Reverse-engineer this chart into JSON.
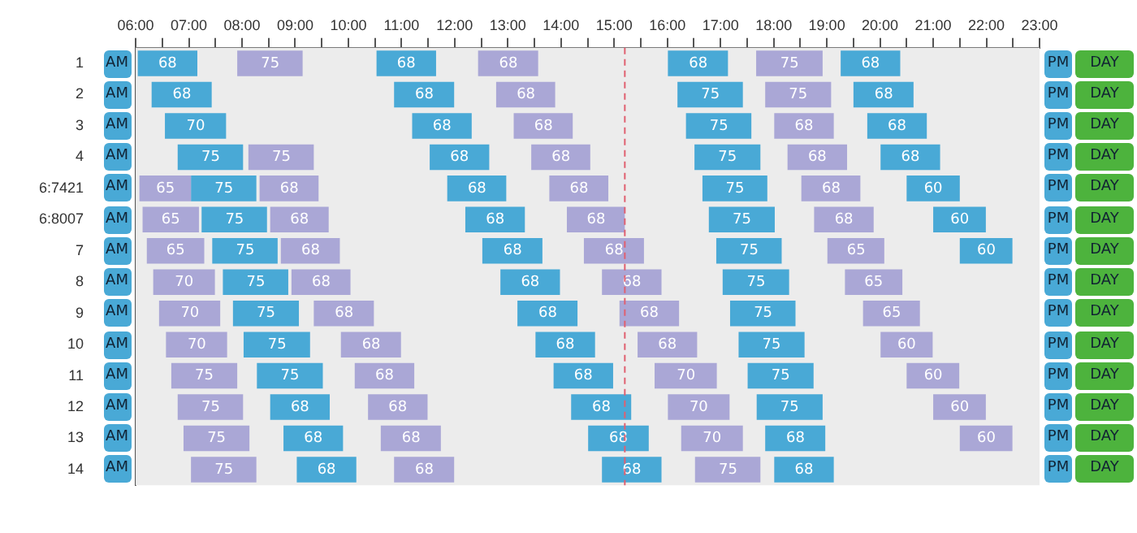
{
  "chart_data": {
    "type": "bar",
    "orientation": "horizontal",
    "categories": [
      "1",
      "2",
      "3",
      "4",
      "6:7421",
      "6:8007",
      "7",
      "8",
      "9",
      "10",
      "11",
      "12",
      "13",
      "14"
    ],
    "xlim": [
      6,
      23
    ],
    "xticks": [
      {
        "value": 6,
        "label": "06:00"
      },
      {
        "value": 6.5,
        "label": null
      },
      {
        "value": 7,
        "label": "07:00"
      },
      {
        "value": 7.5,
        "label": null
      },
      {
        "value": 8,
        "label": "08:00"
      },
      {
        "value": 8.5,
        "label": null
      },
      {
        "value": 9,
        "label": "09:00"
      },
      {
        "value": 9.5,
        "label": null
      },
      {
        "value": 10,
        "label": "10:00"
      },
      {
        "value": 10.5,
        "label": null
      },
      {
        "value": 11,
        "label": "11:00"
      },
      {
        "value": 11.5,
        "label": null
      },
      {
        "value": 12,
        "label": "12:00"
      },
      {
        "value": 12.5,
        "label": null
      },
      {
        "value": 13,
        "label": "13:00"
      },
      {
        "value": 13.5,
        "label": null
      },
      {
        "value": 14,
        "label": "14:00"
      },
      {
        "value": 14.5,
        "label": null
      },
      {
        "value": 15,
        "label": "15:00"
      },
      {
        "value": 15.5,
        "label": null
      },
      {
        "value": 16,
        "label": "16:00"
      },
      {
        "value": 16.5,
        "label": null
      },
      {
        "value": 17,
        "label": "17:00"
      },
      {
        "value": 17.5,
        "label": null
      },
      {
        "value": 18,
        "label": "18:00"
      },
      {
        "value": 18.5,
        "label": null
      },
      {
        "value": 19,
        "label": "19:00"
      },
      {
        "value": 19.5,
        "label": null
      },
      {
        "value": 20,
        "label": "20:00"
      },
      {
        "value": 20.5,
        "label": null
      },
      {
        "value": 21,
        "label": "21:00"
      },
      {
        "value": 21.5,
        "label": null
      },
      {
        "value": 22,
        "label": "22:00"
      },
      {
        "value": 22.5,
        "label": null
      },
      {
        "value": 23,
        "label": "23:00"
      }
    ],
    "ref_lines": [
      {
        "axis": "x",
        "value": 15.2,
        "color": "#e06070",
        "line_style": "dashed"
      }
    ],
    "annotations": [
      "AM",
      "PM",
      "DAY",
      {
        "text": "68",
        "x": 6.6,
        "y": "1"
      },
      {
        "text": "75",
        "x": 8.53,
        "y": "1"
      },
      {
        "text": "68",
        "x": 11.09,
        "y": "1"
      },
      {
        "text": "68",
        "x": 13.01,
        "y": "1"
      },
      {
        "text": "68",
        "x": 16.58,
        "y": "1"
      },
      {
        "text": "75",
        "x": 18.3,
        "y": "1"
      },
      {
        "text": "68",
        "x": 19.82,
        "y": "1"
      },
      {
        "text": "68",
        "x": 6.87,
        "y": "2"
      },
      {
        "text": "68",
        "x": 11.43,
        "y": "2"
      },
      {
        "text": "68",
        "x": 13.34,
        "y": "2"
      },
      {
        "text": "75",
        "x": 16.81,
        "y": "2"
      },
      {
        "text": "75",
        "x": 18.46,
        "y": "2"
      },
      {
        "text": "68",
        "x": 20.07,
        "y": "2"
      },
      {
        "text": "70",
        "x": 7.13,
        "y": "3"
      },
      {
        "text": "68",
        "x": 11.76,
        "y": "3"
      },
      {
        "text": "68",
        "x": 13.67,
        "y": "3"
      },
      {
        "text": "75",
        "x": 16.97,
        "y": "3"
      },
      {
        "text": "68",
        "x": 18.57,
        "y": "3"
      },
      {
        "text": "68",
        "x": 20.32,
        "y": "3"
      },
      {
        "text": "75",
        "x": 7.41,
        "y": "4"
      },
      {
        "text": "75",
        "x": 8.74,
        "y": "4"
      },
      {
        "text": "68",
        "x": 12.09,
        "y": "4"
      },
      {
        "text": "68",
        "x": 14.0,
        "y": "4"
      },
      {
        "text": "75",
        "x": 17.13,
        "y": "4"
      },
      {
        "text": "68",
        "x": 18.82,
        "y": "4"
      },
      {
        "text": "68",
        "x": 20.57,
        "y": "4"
      },
      {
        "text": "65",
        "x": 6.56,
        "y": "6:7421"
      },
      {
        "text": "75",
        "x": 7.66,
        "y": "6:7421"
      },
      {
        "text": "68",
        "x": 8.89,
        "y": "6:7421"
      },
      {
        "text": "68",
        "x": 12.42,
        "y": "6:7421"
      },
      {
        "text": "68",
        "x": 14.34,
        "y": "6:7421"
      },
      {
        "text": "75",
        "x": 17.27,
        "y": "6:7421"
      },
      {
        "text": "68",
        "x": 19.08,
        "y": "6:7421"
      },
      {
        "text": "60",
        "x": 21.0,
        "y": "6:7421"
      },
      {
        "text": "65",
        "x": 6.66,
        "y": "6:8007"
      },
      {
        "text": "75",
        "x": 7.86,
        "y": "6:8007"
      },
      {
        "text": "68",
        "x": 9.08,
        "y": "6:8007"
      },
      {
        "text": "68",
        "x": 12.76,
        "y": "6:8007"
      },
      {
        "text": "68",
        "x": 14.66,
        "y": "6:8007"
      },
      {
        "text": "75",
        "x": 17.4,
        "y": "6:8007"
      },
      {
        "text": "68",
        "x": 19.32,
        "y": "6:8007"
      },
      {
        "text": "60",
        "x": 21.5,
        "y": "6:8007"
      },
      {
        "text": "65",
        "x": 6.75,
        "y": "7"
      },
      {
        "text": "75",
        "x": 8.06,
        "y": "7"
      },
      {
        "text": "68",
        "x": 9.29,
        "y": "7"
      },
      {
        "text": "68",
        "x": 13.09,
        "y": "7"
      },
      {
        "text": "68",
        "x": 15.0,
        "y": "7"
      },
      {
        "text": "75",
        "x": 17.54,
        "y": "7"
      },
      {
        "text": "65",
        "x": 19.55,
        "y": "7"
      },
      {
        "text": "60",
        "x": 22.0,
        "y": "7"
      },
      {
        "text": "70",
        "x": 6.91,
        "y": "8"
      },
      {
        "text": "75",
        "x": 8.26,
        "y": "8"
      },
      {
        "text": "68",
        "x": 9.49,
        "y": "8"
      },
      {
        "text": "68",
        "x": 13.42,
        "y": "8"
      },
      {
        "text": "68",
        "x": 15.33,
        "y": "8"
      },
      {
        "text": "75",
        "x": 17.67,
        "y": "8"
      },
      {
        "text": "65",
        "x": 19.88,
        "y": "8"
      },
      {
        "text": "70",
        "x": 7.02,
        "y": "9"
      },
      {
        "text": "75",
        "x": 8.45,
        "y": "9"
      },
      {
        "text": "68",
        "x": 9.92,
        "y": "9"
      },
      {
        "text": "68",
        "x": 13.75,
        "y": "9"
      },
      {
        "text": "68",
        "x": 15.66,
        "y": "9"
      },
      {
        "text": "75",
        "x": 17.8,
        "y": "9"
      },
      {
        "text": "65",
        "x": 20.22,
        "y": "9"
      },
      {
        "text": "70",
        "x": 7.15,
        "y": "10"
      },
      {
        "text": "75",
        "x": 8.66,
        "y": "10"
      },
      {
        "text": "68",
        "x": 10.43,
        "y": "10"
      },
      {
        "text": "68",
        "x": 14.08,
        "y": "10"
      },
      {
        "text": "68",
        "x": 16.0,
        "y": "10"
      },
      {
        "text": "75",
        "x": 17.96,
        "y": "10"
      },
      {
        "text": "60",
        "x": 20.5,
        "y": "10"
      },
      {
        "text": "75",
        "x": 7.29,
        "y": "11"
      },
      {
        "text": "75",
        "x": 8.9,
        "y": "11"
      },
      {
        "text": "68",
        "x": 10.68,
        "y": "11"
      },
      {
        "text": "68",
        "x": 14.42,
        "y": "11"
      },
      {
        "text": "70",
        "x": 16.35,
        "y": "11"
      },
      {
        "text": "75",
        "x": 18.13,
        "y": "11"
      },
      {
        "text": "60",
        "x": 21.0,
        "y": "11"
      },
      {
        "text": "75",
        "x": 7.41,
        "y": "12"
      },
      {
        "text": "68",
        "x": 9.09,
        "y": "12"
      },
      {
        "text": "68",
        "x": 10.93,
        "y": "12"
      },
      {
        "text": "68",
        "x": 14.76,
        "y": "12"
      },
      {
        "text": "70",
        "x": 16.59,
        "y": "12"
      },
      {
        "text": "75",
        "x": 18.3,
        "y": "12"
      },
      {
        "text": "60",
        "x": 21.5,
        "y": "12"
      },
      {
        "text": "75",
        "x": 7.52,
        "y": "13"
      },
      {
        "text": "68",
        "x": 9.34,
        "y": "13"
      },
      {
        "text": "68",
        "x": 11.18,
        "y": "13"
      },
      {
        "text": "68",
        "x": 15.08,
        "y": "13"
      },
      {
        "text": "70",
        "x": 16.84,
        "y": "13"
      },
      {
        "text": "68",
        "x": 18.41,
        "y": "13"
      },
      {
        "text": "60",
        "x": 22.0,
        "y": "13"
      },
      {
        "text": "75",
        "x": 7.66,
        "y": "14"
      },
      {
        "text": "68",
        "x": 9.59,
        "y": "14"
      },
      {
        "text": "68",
        "x": 11.43,
        "y": "14"
      },
      {
        "text": "68",
        "x": 15.33,
        "y": "14"
      },
      {
        "text": "75",
        "x": 17.14,
        "y": "14"
      },
      {
        "text": "68",
        "x": 18.57,
        "y": "14"
      }
    ],
    "series": [
      {
        "base": [
          6.04,
          6.3,
          6.55,
          6.79,
          6.07,
          6.13,
          6.21,
          6.33,
          6.44,
          6.57,
          6.67,
          6.79,
          6.9,
          7.04
        ],
        "values": [
          1.12,
          1.13,
          1.15,
          1.23,
          0.97,
          1.06,
          1.08,
          1.16,
          1.15,
          1.15,
          1.24,
          1.23,
          1.24,
          1.23
        ],
        "colors": [
          "#49a9d6",
          "#49a9d6",
          "#49a9d6",
          "#49a9d6",
          "#aaa7d6",
          "#aaa7d6",
          "#aaa7d6",
          "#aaa7d6",
          "#aaa7d6",
          "#aaa7d6",
          "#aaa7d6",
          "#aaa7d6",
          "#aaa7d6",
          "#aaa7d6"
        ]
      },
      {
        "base": [
          7.91,
          10.86,
          11.2,
          8.12,
          7.04,
          7.24,
          7.44,
          7.64,
          7.83,
          8.03,
          8.28,
          8.53,
          8.78,
          9.03
        ],
        "values": [
          1.23,
          1.13,
          1.12,
          1.23,
          1.23,
          1.23,
          1.23,
          1.23,
          1.24,
          1.25,
          1.24,
          1.12,
          1.12,
          1.12
        ],
        "colors": [
          "#aaa7d6",
          "#49a9d6",
          "#49a9d6",
          "#aaa7d6",
          "#49a9d6",
          "#49a9d6",
          "#49a9d6",
          "#49a9d6",
          "#49a9d6",
          "#49a9d6",
          "#49a9d6",
          "#49a9d6",
          "#49a9d6",
          "#49a9d6"
        ]
      },
      {
        "base": [
          10.53,
          12.78,
          13.11,
          11.53,
          8.33,
          8.53,
          8.73,
          8.93,
          9.35,
          9.86,
          10.12,
          10.37,
          10.61,
          10.86
        ],
        "values": [
          1.12,
          1.11,
          1.11,
          1.12,
          1.11,
          1.1,
          1.11,
          1.11,
          1.13,
          1.13,
          1.12,
          1.12,
          1.13,
          1.13
        ],
        "colors": [
          "#49a9d6",
          "#aaa7d6",
          "#aaa7d6",
          "#49a9d6",
          "#aaa7d6",
          "#aaa7d6",
          "#aaa7d6",
          "#aaa7d6",
          "#aaa7d6",
          "#aaa7d6",
          "#aaa7d6",
          "#aaa7d6",
          "#aaa7d6",
          "#aaa7d6"
        ]
      },
      {
        "base": [
          12.44,
          16.19,
          16.35,
          13.44,
          11.86,
          12.2,
          12.52,
          12.86,
          13.18,
          13.52,
          13.86,
          14.19,
          14.51,
          14.77
        ],
        "values": [
          1.13,
          1.23,
          1.23,
          1.11,
          1.11,
          1.12,
          1.13,
          1.12,
          1.13,
          1.12,
          1.12,
          1.13,
          1.14,
          1.12
        ],
        "colors": [
          "#aaa7d6",
          "#49a9d6",
          "#49a9d6",
          "#aaa7d6",
          "#49a9d6",
          "#49a9d6",
          "#49a9d6",
          "#49a9d6",
          "#49a9d6",
          "#49a9d6",
          "#49a9d6",
          "#49a9d6",
          "#49a9d6",
          "#49a9d6"
        ]
      },
      {
        "base": [
          16.01,
          17.84,
          18.01,
          16.51,
          13.78,
          14.11,
          14.43,
          14.77,
          15.1,
          15.44,
          15.76,
          16.01,
          16.26,
          16.52
        ],
        "values": [
          1.13,
          1.24,
          1.12,
          1.24,
          1.11,
          1.09,
          1.13,
          1.12,
          1.12,
          1.12,
          1.17,
          1.16,
          1.16,
          1.23
        ],
        "colors": [
          "#49a9d6",
          "#aaa7d6",
          "#aaa7d6",
          "#49a9d6",
          "#aaa7d6",
          "#aaa7d6",
          "#aaa7d6",
          "#aaa7d6",
          "#aaa7d6",
          "#aaa7d6",
          "#aaa7d6",
          "#aaa7d6",
          "#aaa7d6",
          "#aaa7d6"
        ]
      },
      {
        "base": [
          17.67,
          19.5,
          19.76,
          18.26,
          16.66,
          16.78,
          16.92,
          17.04,
          17.18,
          17.34,
          17.51,
          17.68,
          17.84,
          18.01
        ],
        "values": [
          1.25,
          1.13,
          1.12,
          1.12,
          1.22,
          1.24,
          1.23,
          1.25,
          1.23,
          1.24,
          1.24,
          1.24,
          1.13,
          1.12
        ],
        "colors": [
          "#aaa7d6",
          "#49a9d6",
          "#49a9d6",
          "#aaa7d6",
          "#49a9d6",
          "#49a9d6",
          "#49a9d6",
          "#49a9d6",
          "#49a9d6",
          "#49a9d6",
          "#49a9d6",
          "#49a9d6",
          "#49a9d6",
          "#49a9d6"
        ]
      },
      {
        "base": [
          19.26,
          null,
          null,
          20.01,
          18.52,
          18.76,
          19.01,
          19.34,
          19.68,
          20.01,
          20.5,
          21.0,
          21.5,
          null
        ],
        "values": [
          1.12,
          null,
          null,
          1.12,
          1.11,
          1.12,
          1.07,
          1.08,
          1.07,
          0.98,
          0.99,
          0.99,
          0.99,
          null
        ],
        "colors": [
          "#49a9d6",
          null,
          null,
          "#49a9d6",
          "#aaa7d6",
          "#aaa7d6",
          "#aaa7d6",
          "#aaa7d6",
          "#aaa7d6",
          "#aaa7d6",
          "#aaa7d6",
          "#aaa7d6",
          "#aaa7d6",
          null
        ]
      },
      {
        "base": [
          null,
          null,
          null,
          null,
          20.5,
          21.0,
          21.5,
          null,
          null,
          null,
          null,
          null,
          null,
          null
        ],
        "values": [
          null,
          null,
          null,
          null,
          1.0,
          0.99,
          0.99,
          null,
          null,
          null,
          null,
          null,
          null,
          null
        ],
        "colors": [
          null,
          null,
          null,
          null,
          "#49a9d6",
          "#49a9d6",
          "#49a9d6",
          null,
          null,
          null,
          null,
          null,
          null,
          null
        ]
      }
    ]
  }
}
